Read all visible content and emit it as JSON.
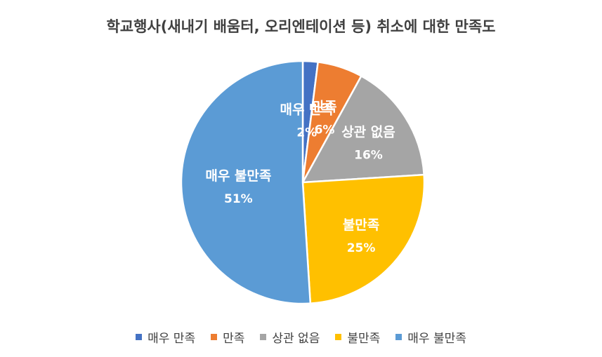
{
  "chart_data": {
    "type": "pie",
    "title": "학교행사(새내기 배움터, 오리엔테이션 등) 취소에 대한 만족도",
    "categories": [
      "매우 만족",
      "만족",
      "상관 없음",
      "불만족",
      "매우 불만족"
    ],
    "values": [
      2,
      6,
      16,
      25,
      51
    ],
    "value_labels": [
      "2%",
      "6%",
      "16%",
      "25%",
      "51%"
    ],
    "colors": [
      "#4472C4",
      "#ED7D31",
      "#A5A5A5",
      "#FFC000",
      "#5B9BD5"
    ],
    "start_angle": "12 o'clock",
    "direction": "clockwise",
    "legend_position": "bottom"
  }
}
